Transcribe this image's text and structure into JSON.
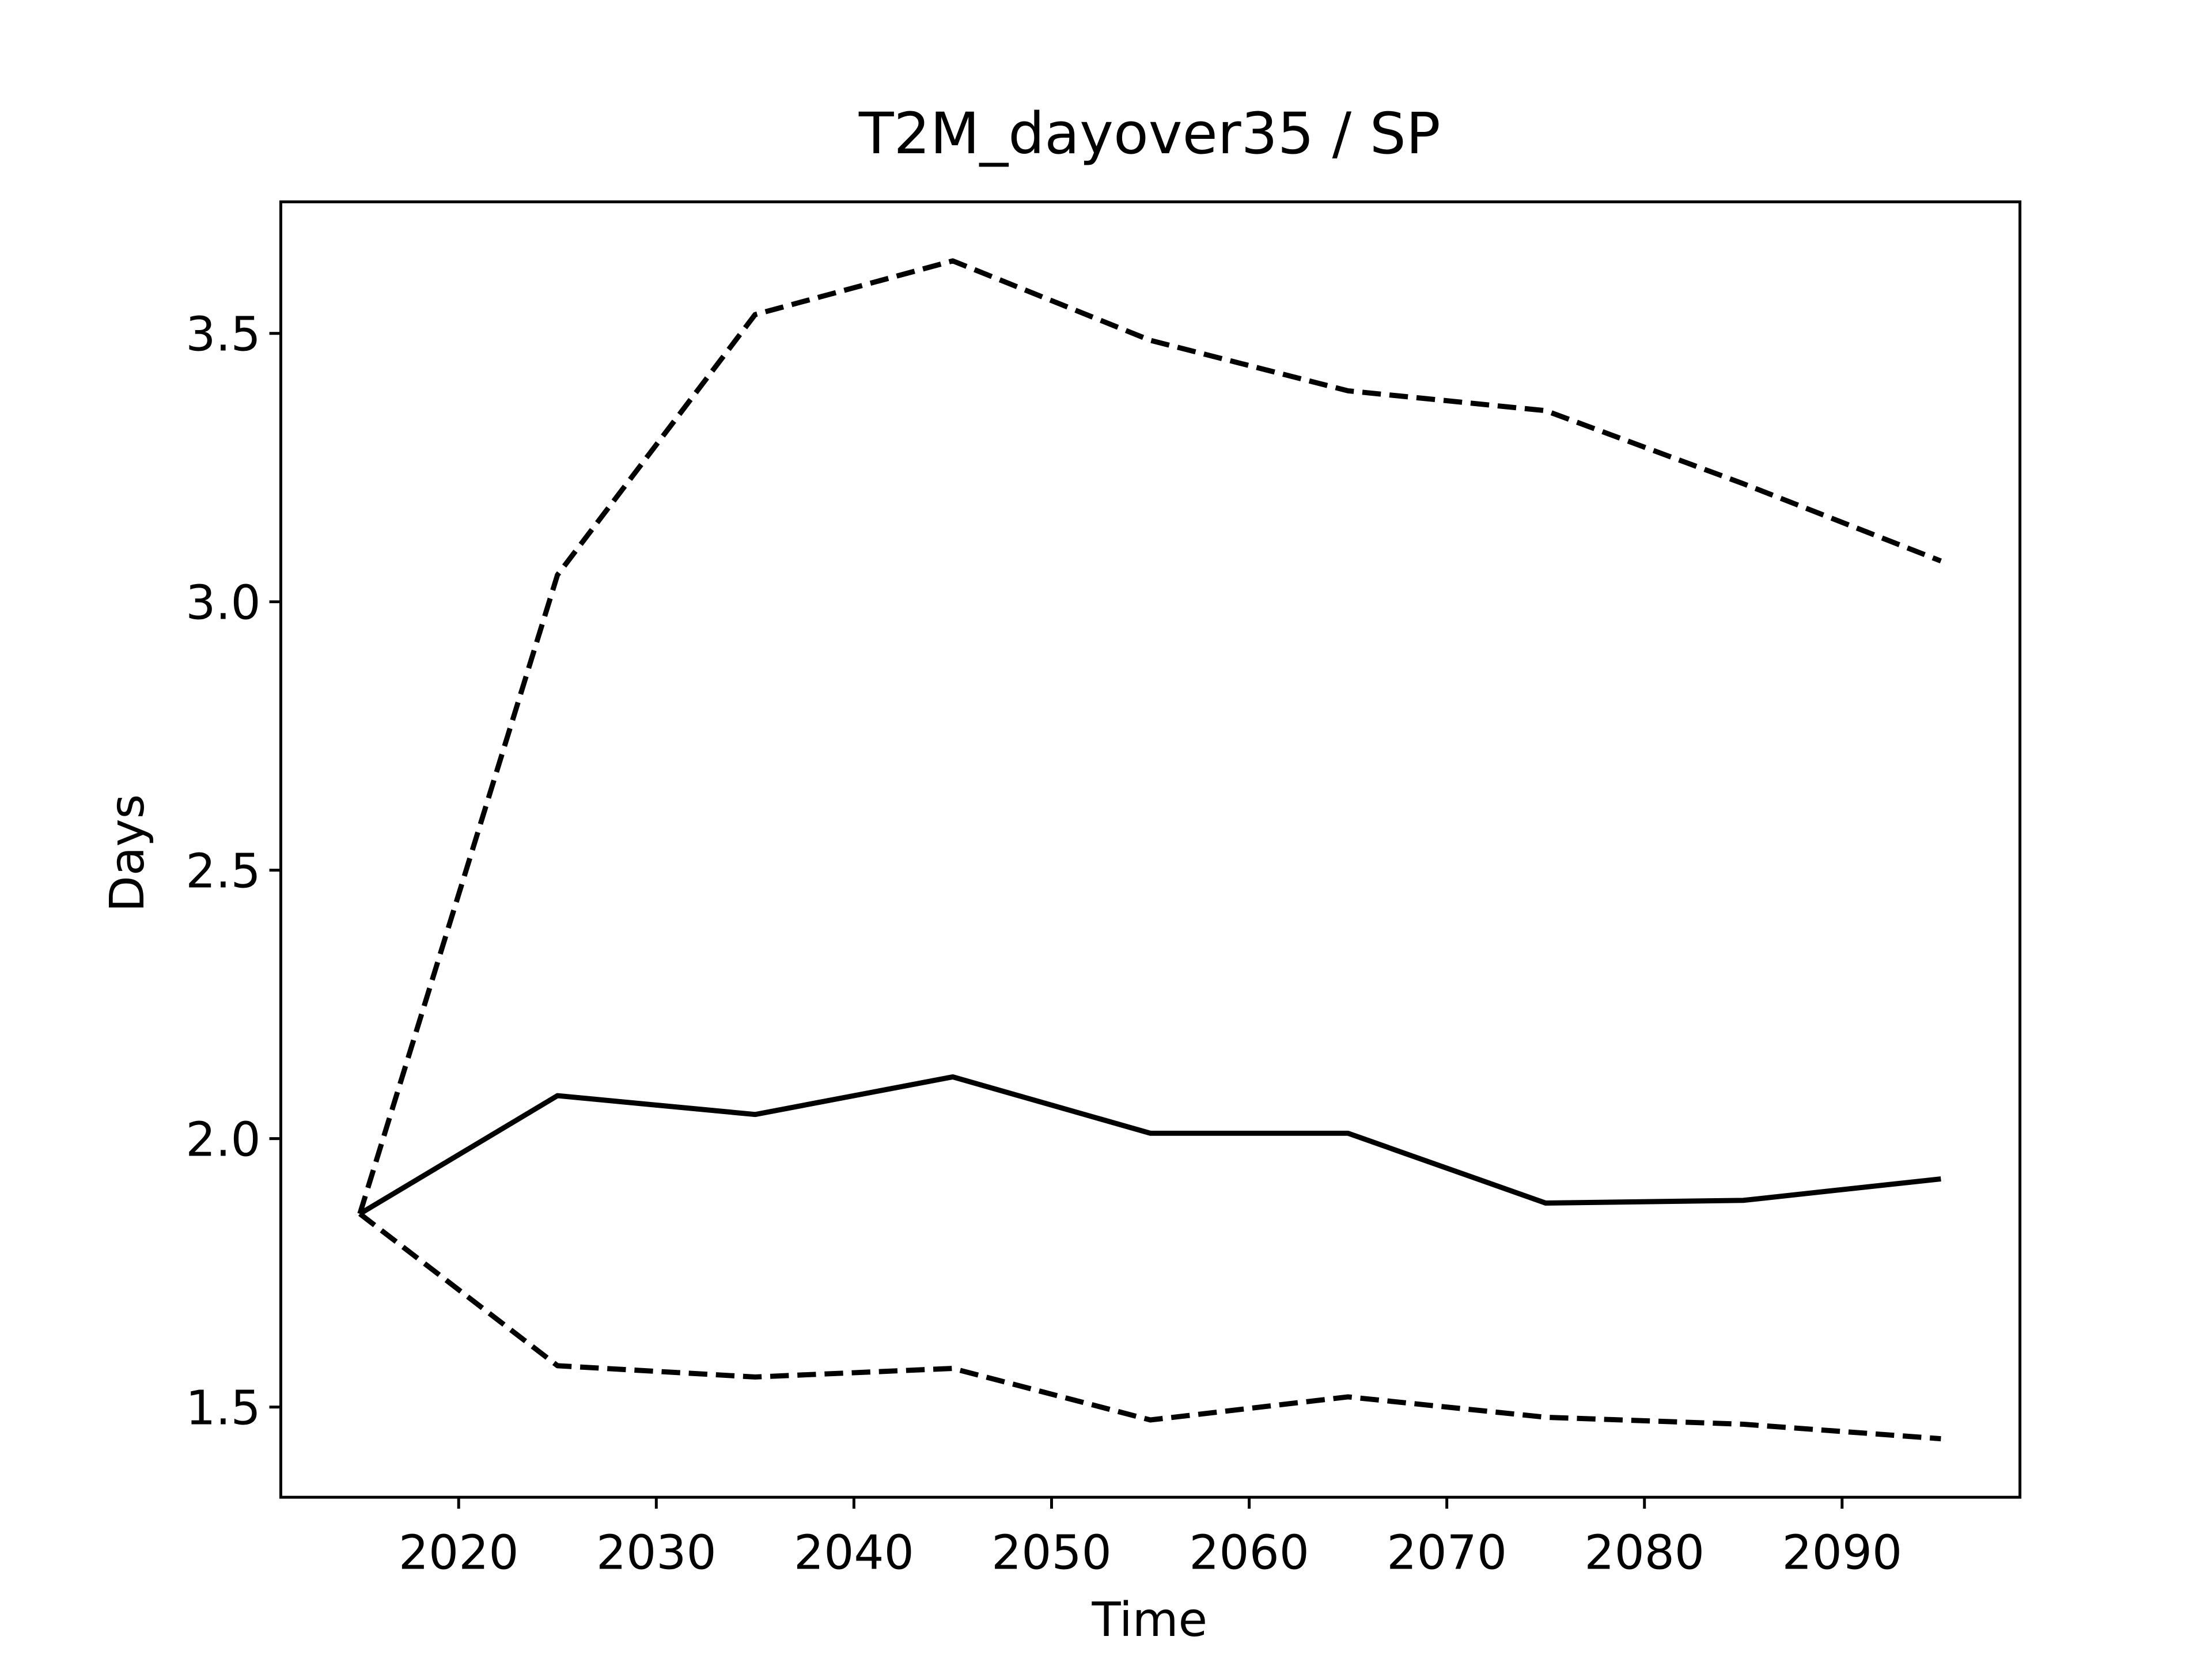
{
  "chart_data": {
    "type": "line",
    "title": "T2M_dayover35 / SP",
    "xlabel": "Time",
    "ylabel": "Days",
    "x": [
      2015,
      2025,
      2035,
      2045,
      2055,
      2065,
      2075,
      2085,
      2095
    ],
    "series": [
      {
        "color": "#000000",
        "linestyle": "solid",
        "values": [
          1.86,
          2.08,
          2.045,
          2.115,
          2.01,
          2.01,
          1.88,
          1.885,
          1.925
        ]
      },
      {
        "color": "#000000",
        "linestyle": "dashed",
        "values": [
          1.86,
          3.05,
          3.535,
          3.635,
          3.487,
          3.393,
          3.356,
          3.22,
          3.076
        ]
      },
      {
        "color": "#000000",
        "linestyle": "dashed",
        "values": [
          1.86,
          1.577,
          1.556,
          1.572,
          1.476,
          1.519,
          1.481,
          1.468,
          1.441
        ]
      }
    ],
    "xlim": [
      2011,
      2099
    ],
    "ylim": [
      1.332,
      3.745
    ],
    "xticks": [
      2020,
      2030,
      2040,
      2050,
      2060,
      2070,
      2080,
      2090
    ],
    "yticks": [
      {
        "value": 1.5,
        "label": "1.5"
      },
      {
        "value": 2.0,
        "label": "2.0"
      },
      {
        "value": 2.5,
        "label": "2.5"
      },
      {
        "value": 3.0,
        "label": "3.0"
      },
      {
        "value": 3.5,
        "label": "3.5"
      }
    ],
    "grid": false
  }
}
